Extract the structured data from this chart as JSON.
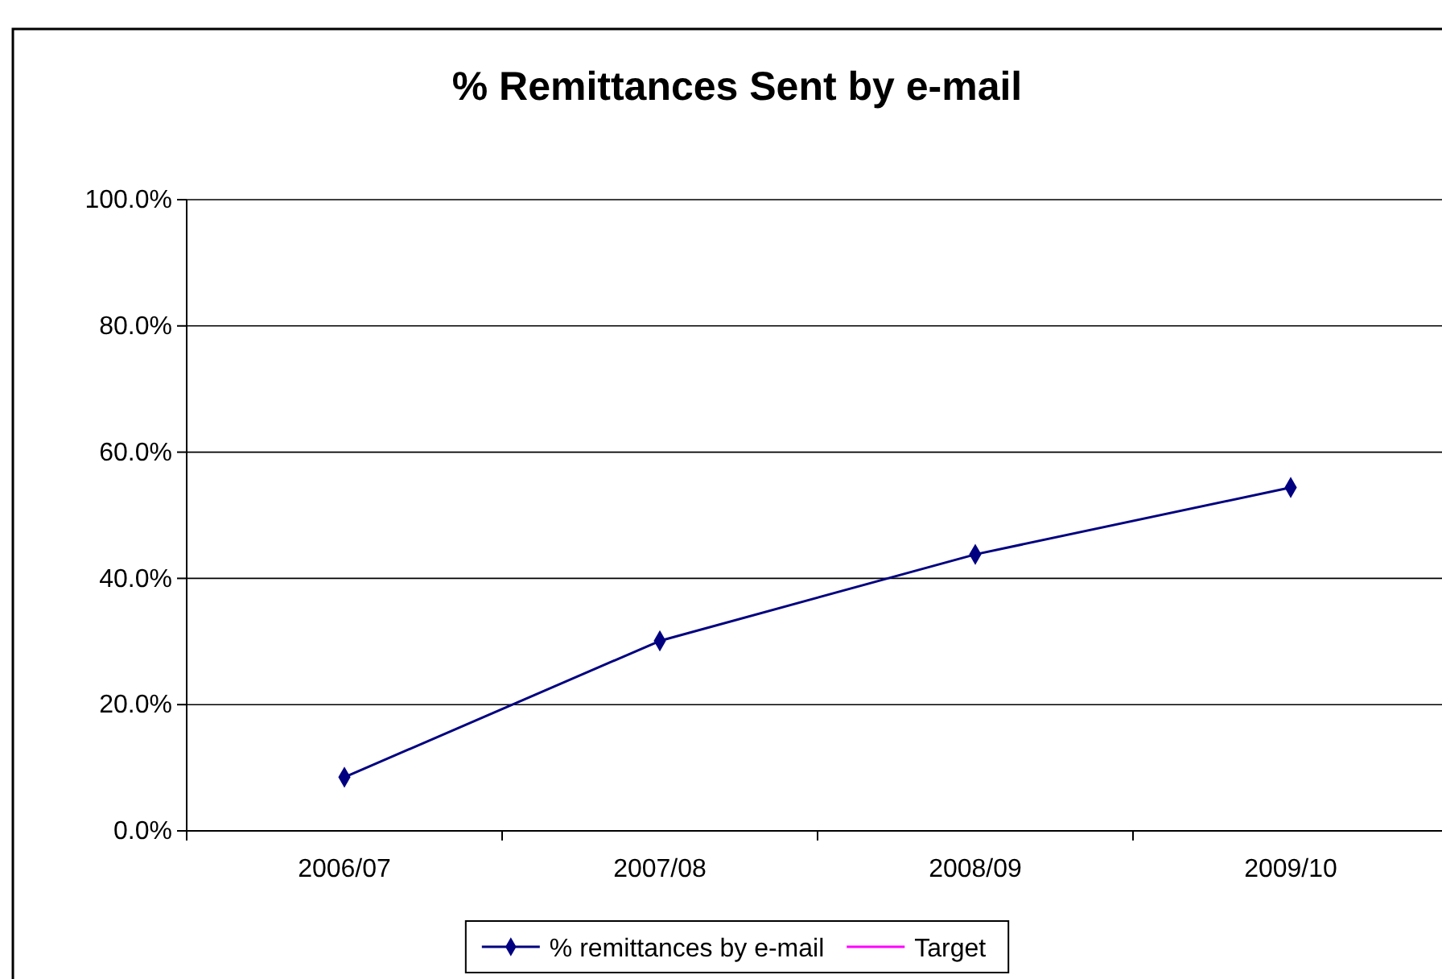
{
  "chart_data": {
    "type": "line",
    "title": "% Remittances Sent by e-mail",
    "categories": [
      "2006/07",
      "2007/08",
      "2008/09",
      "2009/10"
    ],
    "series": [
      {
        "name": "% remittances by e-mail",
        "color": "#000080",
        "values": [
          8.5,
          30.1,
          43.8,
          54.4
        ]
      },
      {
        "name": "Target",
        "color": "#ff00ff",
        "values": [
          null,
          null,
          null,
          null
        ]
      }
    ],
    "ylim": [
      0,
      100
    ],
    "yticks": [
      {
        "value": 0,
        "label": "0.0%"
      },
      {
        "value": 20,
        "label": "20.0%"
      },
      {
        "value": 40,
        "label": "40.0%"
      },
      {
        "value": 60,
        "label": "60.0%"
      },
      {
        "value": 80,
        "label": "80.0%"
      },
      {
        "value": 100,
        "label": "100.0%"
      }
    ],
    "grid": "y",
    "legend": "bottom",
    "marker": "diamond",
    "line_style": "solid"
  }
}
